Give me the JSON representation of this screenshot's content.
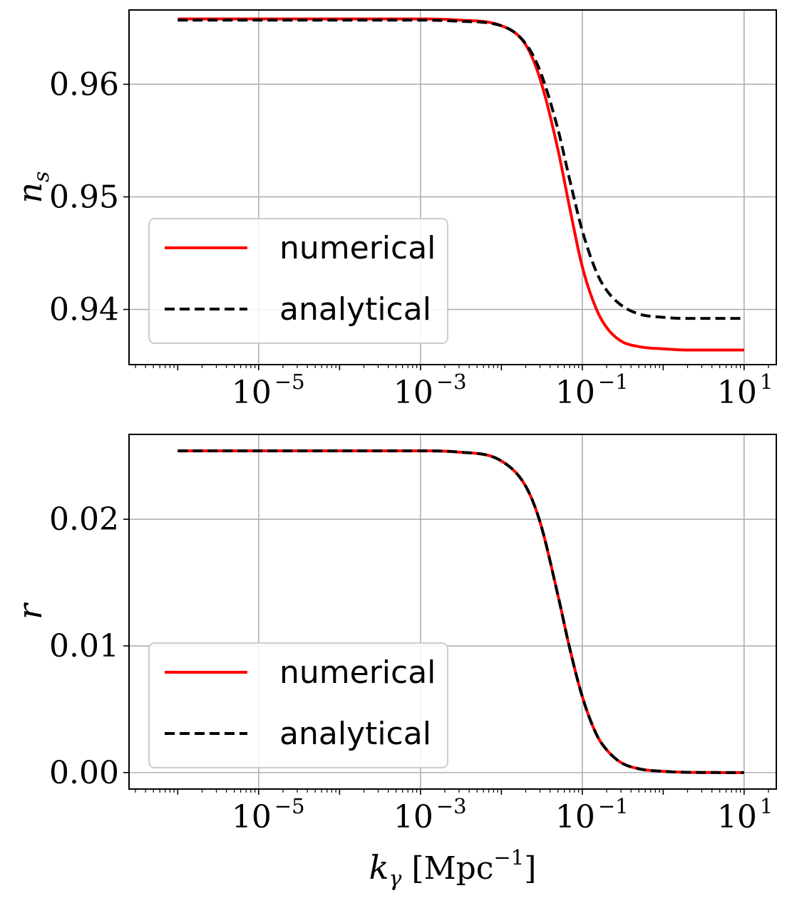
{
  "chart_data": [
    {
      "type": "line",
      "ylabel": "n_s",
      "xlabel": "",
      "xscale": "log",
      "xlim": [
        2.5e-07,
        25
      ],
      "ylim": [
        0.9351,
        0.9666
      ],
      "xticks": [
        1e-05,
        0.001,
        0.1,
        10
      ],
      "xtick_labels": [
        {
          "base": "10",
          "exp": "−5"
        },
        {
          "base": "10",
          "exp": "−3"
        },
        {
          "base": "10",
          "exp": "−1"
        },
        {
          "base": "10",
          "exp": "1"
        }
      ],
      "yticks": [
        0.94,
        0.95,
        0.96
      ],
      "ytick_labels": [
        "0.94",
        "0.95",
        "0.96"
      ],
      "grid": true,
      "legend": {
        "placement": "lower-left",
        "entries": [
          "numerical",
          "analytical"
        ]
      },
      "x": [
        1e-06,
        1e-05,
        0.0001,
        0.001,
        0.003,
        0.01,
        0.02,
        0.03,
        0.05,
        0.07,
        0.1,
        0.15,
        0.2,
        0.3,
        0.5,
        1,
        2,
        10
      ],
      "series": [
        {
          "name": "numerical",
          "color": "#ff0000",
          "style": "solid",
          "values": [
            0.9658,
            0.9658,
            0.9658,
            0.9658,
            0.9657,
            0.9652,
            0.9635,
            0.9605,
            0.9542,
            0.949,
            0.9438,
            0.94,
            0.9384,
            0.9372,
            0.9367,
            0.9365,
            0.9364,
            0.9364
          ]
        },
        {
          "name": "analytical",
          "color": "#000000",
          "style": "dashed",
          "values": [
            0.9657,
            0.9657,
            0.9657,
            0.9657,
            0.9656,
            0.9652,
            0.9636,
            0.9612,
            0.956,
            0.9515,
            0.947,
            0.9433,
            0.9417,
            0.9404,
            0.9396,
            0.9393,
            0.9392,
            0.9392
          ]
        }
      ]
    },
    {
      "type": "line",
      "ylabel": "r",
      "xlabel": "k_γ [Mpc^−1]",
      "xscale": "log",
      "xlim": [
        2.5e-07,
        25
      ],
      "ylim": [
        -0.0013,
        0.0267
      ],
      "xticks": [
        1e-05,
        0.001,
        0.1,
        10
      ],
      "xtick_labels": [
        {
          "base": "10",
          "exp": "−5"
        },
        {
          "base": "10",
          "exp": "−3"
        },
        {
          "base": "10",
          "exp": "−1"
        },
        {
          "base": "10",
          "exp": "1"
        }
      ],
      "yticks": [
        0.0,
        0.01,
        0.02
      ],
      "ytick_labels": [
        "0.00",
        "0.01",
        "0.02"
      ],
      "grid": true,
      "legend": {
        "placement": "lower-left",
        "entries": [
          "numerical",
          "analytical"
        ]
      },
      "x": [
        1e-06,
        1e-05,
        0.0001,
        0.001,
        0.003,
        0.01,
        0.02,
        0.03,
        0.05,
        0.07,
        0.1,
        0.15,
        0.2,
        0.3,
        0.5,
        1,
        2,
        10
      ],
      "series": [
        {
          "name": "numerical",
          "color": "#ff0000",
          "style": "solid",
          "values": [
            0.0254,
            0.0254,
            0.0254,
            0.0254,
            0.0253,
            0.0246,
            0.0226,
            0.0198,
            0.014,
            0.0098,
            0.006,
            0.003,
            0.0018,
            0.0008,
            0.0003,
            0.0001,
            2e-05,
            0.0
          ]
        },
        {
          "name": "analytical",
          "color": "#000000",
          "style": "dashed",
          "values": [
            0.0254,
            0.0254,
            0.0254,
            0.0254,
            0.0253,
            0.0246,
            0.0226,
            0.0198,
            0.014,
            0.0098,
            0.006,
            0.003,
            0.0018,
            0.0008,
            0.0003,
            0.0001,
            2e-05,
            0.0
          ]
        }
      ]
    }
  ]
}
